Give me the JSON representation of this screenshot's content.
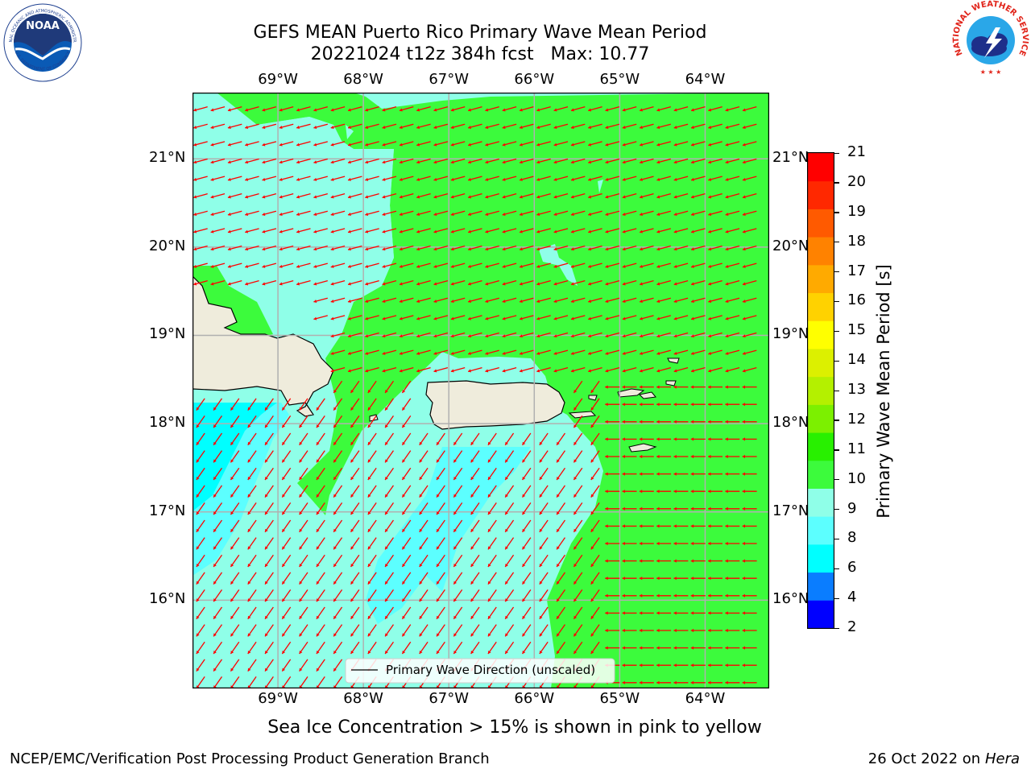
{
  "title": {
    "line1": "GEFS MEAN Puerto Rico Primary Wave Mean Period",
    "line2": "20221024 t12z 384h fcst   Max: 10.77"
  },
  "map": {
    "lon_labels": [
      "69°W",
      "68°W",
      "67°W",
      "66°W",
      "65°W",
      "64°W"
    ],
    "lat_labels": [
      "21°N",
      "20°N",
      "19°N",
      "18°N",
      "17°N",
      "16°N"
    ],
    "lon_values": [
      -69,
      -68,
      -67,
      -66,
      -65,
      -64
    ],
    "lat_values": [
      21,
      20,
      19,
      18,
      17,
      16
    ],
    "extent": {
      "lon_min": -70,
      "lon_max": -63.25,
      "lat_min": 15,
      "lat_max": 21.75
    },
    "legend_label": "Primary Wave Direction (unscaled)",
    "vector_color": "#ff0000",
    "land_color": "#efecdc",
    "gridline_color": "#b0b0b0"
  },
  "colorbar": {
    "label": "Primary Wave Mean Period [s]",
    "ticks": [
      "21",
      "20",
      "19",
      "18",
      "17",
      "16",
      "15",
      "14",
      "13",
      "12",
      "11",
      "10",
      "9",
      "8",
      "6",
      "4",
      "2"
    ],
    "colors": [
      "#0000ff",
      "#0a7dff",
      "#00ffff",
      "#5cffff",
      "#8fffe8",
      "#3cfb3c",
      "#28f000",
      "#7cf000",
      "#b4f000",
      "#dcf000",
      "#ffff00",
      "#ffd200",
      "#ffaa00",
      "#ff8200",
      "#ff5a00",
      "#ff2800",
      "#ff0000"
    ]
  },
  "note": "Sea Ice Concentration > 15% is shown in pink to yellow",
  "footer": {
    "left": "NCEP/EMC/Verification Post Processing Product Generation Branch",
    "right_date": "26 Oct 2022 on",
    "right_host": "Hera"
  },
  "logos": {
    "left_text": "NOAA",
    "left_ring_text": "NATIONAL OCEANIC AND ATMOSPHERIC ADMINISTRATION",
    "left_ring_text_bottom": "U.S. DEPARTMENT OF COMMERCE",
    "right_ring_text": "NATIONAL WEATHER SERVICE"
  }
}
